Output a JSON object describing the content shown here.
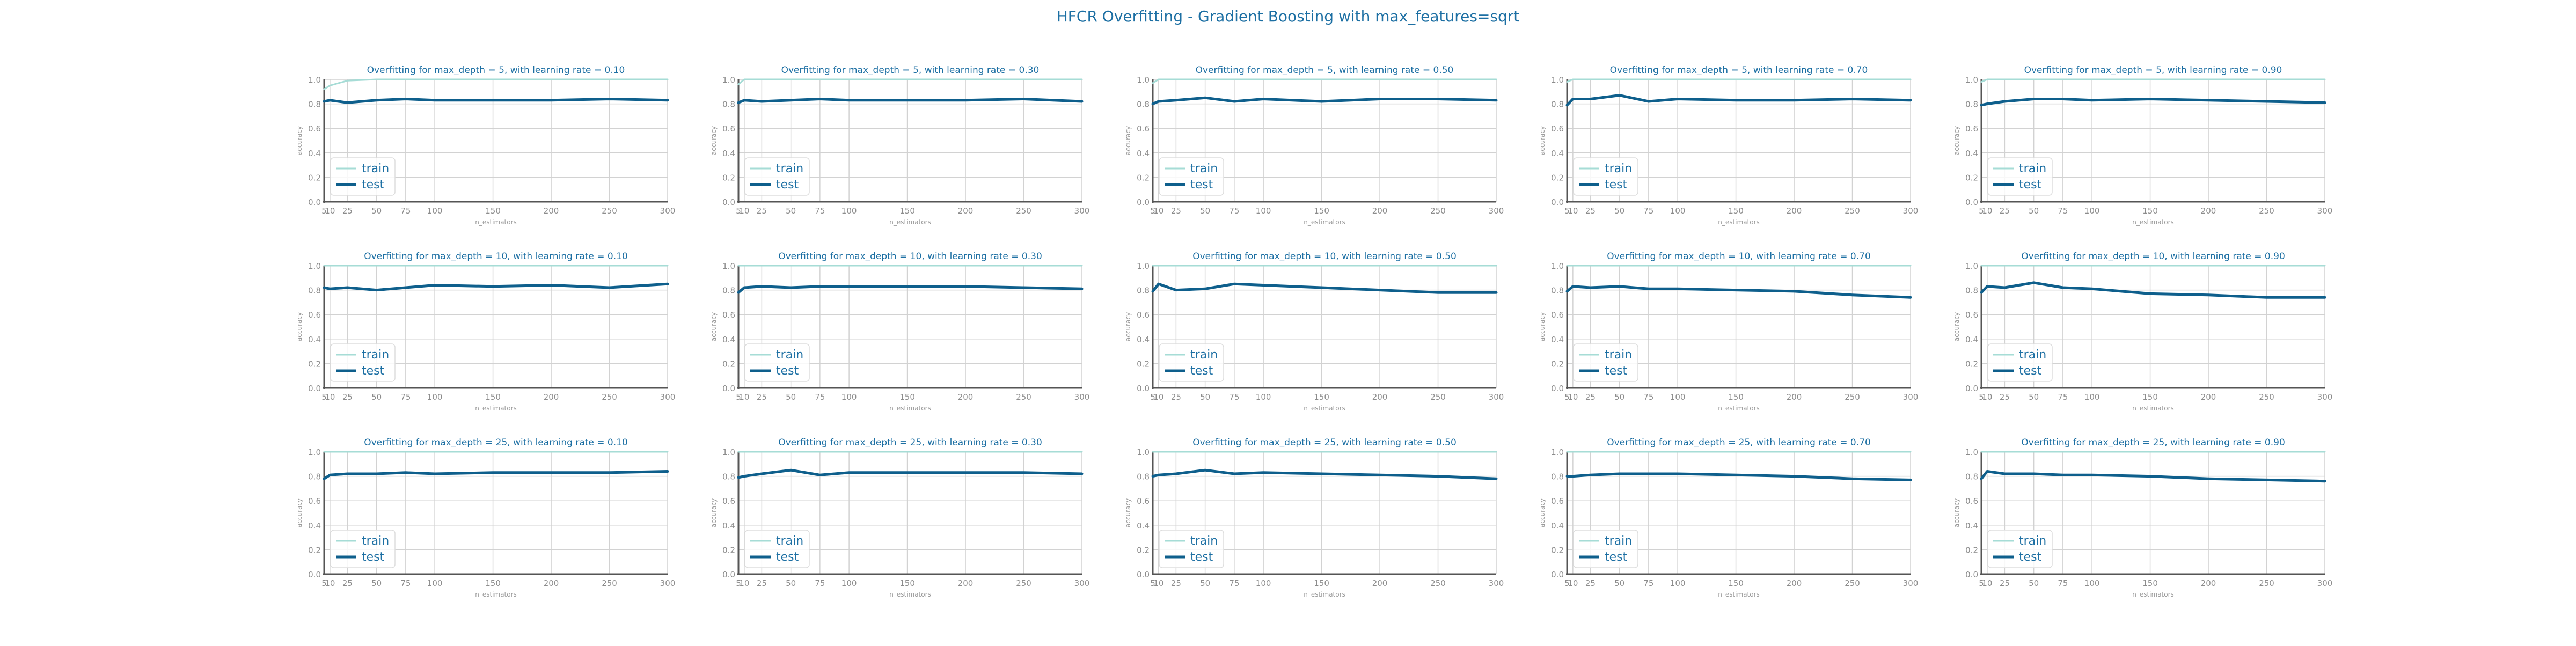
{
  "figure": {
    "title": "HFCR Overfitting - Gradient Boosting with max_features=sqrt"
  },
  "colors": {
    "train": "#a6dcd6",
    "test": "#0e5f8c",
    "title": "#1c6fa3",
    "axis_label": "#9a9a9a",
    "tick": "#8c8c8c",
    "grid": "#d2d2d2",
    "axis": "#555555"
  },
  "chart_data": [
    {
      "type": "line",
      "title": "Overfitting for max_depth = 5, with learning rate = 0.10",
      "xlabel": "n_estimators",
      "ylabel": "accuracy",
      "xlim": [
        5,
        300
      ],
      "ylim": [
        0.0,
        1.0
      ],
      "x": [
        5,
        10,
        25,
        50,
        75,
        100,
        150,
        200,
        250,
        300
      ],
      "xticks": [
        "5",
        "10",
        "25",
        "50",
        "75",
        "100",
        "150",
        "200",
        "250",
        "300"
      ],
      "yticks": [
        "0.0",
        "0.2",
        "0.4",
        "0.6",
        "0.8",
        "1.0"
      ],
      "legend": "lower-left",
      "grid": true,
      "series": [
        {
          "name": "train",
          "values": [
            0.92,
            0.95,
            0.99,
            1.0,
            1.0,
            1.0,
            1.0,
            1.0,
            1.0,
            1.0
          ]
        },
        {
          "name": "test",
          "values": [
            0.82,
            0.83,
            0.81,
            0.83,
            0.84,
            0.83,
            0.83,
            0.83,
            0.84,
            0.83
          ]
        }
      ]
    },
    {
      "type": "line",
      "title": "Overfitting for max_depth = 5, with learning rate = 0.30",
      "xlabel": "n_estimators",
      "ylabel": "accuracy",
      "xlim": [
        5,
        300
      ],
      "ylim": [
        0.0,
        1.0
      ],
      "x": [
        5,
        10,
        25,
        50,
        75,
        100,
        150,
        200,
        250,
        300
      ],
      "xticks": [
        "5",
        "10",
        "25",
        "50",
        "75",
        "100",
        "150",
        "200",
        "250",
        "300"
      ],
      "yticks": [
        "0.0",
        "0.2",
        "0.4",
        "0.6",
        "0.8",
        "1.0"
      ],
      "legend": "lower-left",
      "grid": true,
      "series": [
        {
          "name": "train",
          "values": [
            0.96,
            1.0,
            1.0,
            1.0,
            1.0,
            1.0,
            1.0,
            1.0,
            1.0,
            1.0
          ]
        },
        {
          "name": "test",
          "values": [
            0.81,
            0.83,
            0.82,
            0.83,
            0.84,
            0.83,
            0.83,
            0.83,
            0.84,
            0.82
          ]
        }
      ]
    },
    {
      "type": "line",
      "title": "Overfitting for max_depth = 5, with learning rate = 0.50",
      "xlabel": "n_estimators",
      "ylabel": "accuracy",
      "xlim": [
        5,
        300
      ],
      "ylim": [
        0.0,
        1.0
      ],
      "x": [
        5,
        10,
        25,
        50,
        75,
        100,
        150,
        200,
        250,
        300
      ],
      "xticks": [
        "5",
        "10",
        "25",
        "50",
        "75",
        "100",
        "150",
        "200",
        "250",
        "300"
      ],
      "yticks": [
        "0.0",
        "0.2",
        "0.4",
        "0.6",
        "0.8",
        "1.0"
      ],
      "legend": "lower-left",
      "grid": true,
      "series": [
        {
          "name": "train",
          "values": [
            0.97,
            1.0,
            1.0,
            1.0,
            1.0,
            1.0,
            1.0,
            1.0,
            1.0,
            1.0
          ]
        },
        {
          "name": "test",
          "values": [
            0.8,
            0.82,
            0.83,
            0.85,
            0.82,
            0.84,
            0.82,
            0.84,
            0.84,
            0.83
          ]
        }
      ]
    },
    {
      "type": "line",
      "title": "Overfitting for max_depth = 5, with learning rate = 0.70",
      "xlabel": "n_estimators",
      "ylabel": "accuracy",
      "xlim": [
        5,
        300
      ],
      "ylim": [
        0.0,
        1.0
      ],
      "x": [
        5,
        10,
        25,
        50,
        75,
        100,
        150,
        200,
        250,
        300
      ],
      "xticks": [
        "5",
        "10",
        "25",
        "50",
        "75",
        "100",
        "150",
        "200",
        "250",
        "300"
      ],
      "yticks": [
        "0.0",
        "0.2",
        "0.4",
        "0.6",
        "0.8",
        "1.0"
      ],
      "legend": "lower-left",
      "grid": true,
      "series": [
        {
          "name": "train",
          "values": [
            0.98,
            1.0,
            1.0,
            1.0,
            1.0,
            1.0,
            1.0,
            1.0,
            1.0,
            1.0
          ]
        },
        {
          "name": "test",
          "values": [
            0.79,
            0.84,
            0.84,
            0.87,
            0.82,
            0.84,
            0.83,
            0.83,
            0.84,
            0.83
          ]
        }
      ]
    },
    {
      "type": "line",
      "title": "Overfitting for max_depth = 5, with learning rate = 0.90",
      "xlabel": "n_estimators",
      "ylabel": "accuracy",
      "xlim": [
        5,
        300
      ],
      "ylim": [
        0.0,
        1.0
      ],
      "x": [
        5,
        10,
        25,
        50,
        75,
        100,
        150,
        200,
        250,
        300
      ],
      "xticks": [
        "5",
        "10",
        "25",
        "50",
        "75",
        "100",
        "150",
        "200",
        "250",
        "300"
      ],
      "yticks": [
        "0.0",
        "0.2",
        "0.4",
        "0.6",
        "0.8",
        "1.0"
      ],
      "legend": "lower-left",
      "grid": true,
      "series": [
        {
          "name": "train",
          "values": [
            0.98,
            1.0,
            1.0,
            1.0,
            1.0,
            1.0,
            1.0,
            1.0,
            1.0,
            1.0
          ]
        },
        {
          "name": "test",
          "values": [
            0.79,
            0.8,
            0.82,
            0.84,
            0.84,
            0.83,
            0.84,
            0.83,
            0.82,
            0.81
          ]
        }
      ]
    },
    {
      "type": "line",
      "title": "Overfitting for max_depth = 10, with learning rate = 0.10",
      "xlabel": "n_estimators",
      "ylabel": "accuracy",
      "xlim": [
        5,
        300
      ],
      "ylim": [
        0.0,
        1.0
      ],
      "x": [
        5,
        10,
        25,
        50,
        75,
        100,
        150,
        200,
        250,
        300
      ],
      "xticks": [
        "5",
        "10",
        "25",
        "50",
        "75",
        "100",
        "150",
        "200",
        "250",
        "300"
      ],
      "yticks": [
        "0.0",
        "0.2",
        "0.4",
        "0.6",
        "0.8",
        "1.0"
      ],
      "legend": "lower-left",
      "grid": true,
      "series": [
        {
          "name": "train",
          "values": [
            1.0,
            1.0,
            1.0,
            1.0,
            1.0,
            1.0,
            1.0,
            1.0,
            1.0,
            1.0
          ]
        },
        {
          "name": "test",
          "values": [
            0.82,
            0.81,
            0.82,
            0.8,
            0.82,
            0.84,
            0.83,
            0.84,
            0.82,
            0.85
          ]
        }
      ]
    },
    {
      "type": "line",
      "title": "Overfitting for max_depth = 10, with learning rate = 0.30",
      "xlabel": "n_estimators",
      "ylabel": "accuracy",
      "xlim": [
        5,
        300
      ],
      "ylim": [
        0.0,
        1.0
      ],
      "x": [
        5,
        10,
        25,
        50,
        75,
        100,
        150,
        200,
        250,
        300
      ],
      "xticks": [
        "5",
        "10",
        "25",
        "50",
        "75",
        "100",
        "150",
        "200",
        "250",
        "300"
      ],
      "yticks": [
        "0.0",
        "0.2",
        "0.4",
        "0.6",
        "0.8",
        "1.0"
      ],
      "legend": "lower-left",
      "grid": true,
      "series": [
        {
          "name": "train",
          "values": [
            1.0,
            1.0,
            1.0,
            1.0,
            1.0,
            1.0,
            1.0,
            1.0,
            1.0,
            1.0
          ]
        },
        {
          "name": "test",
          "values": [
            0.78,
            0.82,
            0.83,
            0.82,
            0.83,
            0.83,
            0.83,
            0.83,
            0.82,
            0.81
          ]
        }
      ]
    },
    {
      "type": "line",
      "title": "Overfitting for max_depth = 10, with learning rate = 0.50",
      "xlabel": "n_estimators",
      "ylabel": "accuracy",
      "xlim": [
        5,
        300
      ],
      "ylim": [
        0.0,
        1.0
      ],
      "x": [
        5,
        10,
        25,
        50,
        75,
        100,
        150,
        200,
        250,
        300
      ],
      "xticks": [
        "5",
        "10",
        "25",
        "50",
        "75",
        "100",
        "150",
        "200",
        "250",
        "300"
      ],
      "yticks": [
        "0.0",
        "0.2",
        "0.4",
        "0.6",
        "0.8",
        "1.0"
      ],
      "legend": "lower-left",
      "grid": true,
      "series": [
        {
          "name": "train",
          "values": [
            1.0,
            1.0,
            1.0,
            1.0,
            1.0,
            1.0,
            1.0,
            1.0,
            1.0,
            1.0
          ]
        },
        {
          "name": "test",
          "values": [
            0.79,
            0.85,
            0.8,
            0.81,
            0.85,
            0.84,
            0.82,
            0.8,
            0.78,
            0.78
          ]
        }
      ]
    },
    {
      "type": "line",
      "title": "Overfitting for max_depth = 10, with learning rate = 0.70",
      "xlabel": "n_estimators",
      "ylabel": "accuracy",
      "xlim": [
        5,
        300
      ],
      "ylim": [
        0.0,
        1.0
      ],
      "x": [
        5,
        10,
        25,
        50,
        75,
        100,
        150,
        200,
        250,
        300
      ],
      "xticks": [
        "5",
        "10",
        "25",
        "50",
        "75",
        "100",
        "150",
        "200",
        "250",
        "300"
      ],
      "yticks": [
        "0.0",
        "0.2",
        "0.4",
        "0.6",
        "0.8",
        "1.0"
      ],
      "legend": "lower-left",
      "grid": true,
      "series": [
        {
          "name": "train",
          "values": [
            1.0,
            1.0,
            1.0,
            1.0,
            1.0,
            1.0,
            1.0,
            1.0,
            1.0,
            1.0
          ]
        },
        {
          "name": "test",
          "values": [
            0.79,
            0.83,
            0.82,
            0.83,
            0.81,
            0.81,
            0.8,
            0.79,
            0.76,
            0.74
          ]
        }
      ]
    },
    {
      "type": "line",
      "title": "Overfitting for max_depth = 10, with learning rate = 0.90",
      "xlabel": "n_estimators",
      "ylabel": "accuracy",
      "xlim": [
        5,
        300
      ],
      "ylim": [
        0.0,
        1.0
      ],
      "x": [
        5,
        10,
        25,
        50,
        75,
        100,
        150,
        200,
        250,
        300
      ],
      "xticks": [
        "5",
        "10",
        "25",
        "50",
        "75",
        "100",
        "150",
        "200",
        "250",
        "300"
      ],
      "yticks": [
        "0.0",
        "0.2",
        "0.4",
        "0.6",
        "0.8",
        "1.0"
      ],
      "legend": "lower-left",
      "grid": true,
      "series": [
        {
          "name": "train",
          "values": [
            1.0,
            1.0,
            1.0,
            1.0,
            1.0,
            1.0,
            1.0,
            1.0,
            1.0,
            1.0
          ]
        },
        {
          "name": "test",
          "values": [
            0.78,
            0.83,
            0.82,
            0.86,
            0.82,
            0.81,
            0.77,
            0.76,
            0.74,
            0.74
          ]
        }
      ]
    },
    {
      "type": "line",
      "title": "Overfitting for max_depth = 25, with learning rate = 0.10",
      "xlabel": "n_estimators",
      "ylabel": "accuracy",
      "xlim": [
        5,
        300
      ],
      "ylim": [
        0.0,
        1.0
      ],
      "x": [
        5,
        10,
        25,
        50,
        75,
        100,
        150,
        200,
        250,
        300
      ],
      "xticks": [
        "5",
        "10",
        "25",
        "50",
        "75",
        "100",
        "150",
        "200",
        "250",
        "300"
      ],
      "yticks": [
        "0.0",
        "0.2",
        "0.4",
        "0.6",
        "0.8",
        "1.0"
      ],
      "legend": "lower-left",
      "grid": true,
      "series": [
        {
          "name": "train",
          "values": [
            1.0,
            1.0,
            1.0,
            1.0,
            1.0,
            1.0,
            1.0,
            1.0,
            1.0,
            1.0
          ]
        },
        {
          "name": "test",
          "values": [
            0.78,
            0.81,
            0.82,
            0.82,
            0.83,
            0.82,
            0.83,
            0.83,
            0.83,
            0.84
          ]
        }
      ]
    },
    {
      "type": "line",
      "title": "Overfitting for max_depth = 25, with learning rate = 0.30",
      "xlabel": "n_estimators",
      "ylabel": "accuracy",
      "xlim": [
        5,
        300
      ],
      "ylim": [
        0.0,
        1.0
      ],
      "x": [
        5,
        10,
        25,
        50,
        75,
        100,
        150,
        200,
        250,
        300
      ],
      "xticks": [
        "5",
        "10",
        "25",
        "50",
        "75",
        "100",
        "150",
        "200",
        "250",
        "300"
      ],
      "yticks": [
        "0.0",
        "0.2",
        "0.4",
        "0.6",
        "0.8",
        "1.0"
      ],
      "legend": "lower-left",
      "grid": true,
      "series": [
        {
          "name": "train",
          "values": [
            1.0,
            1.0,
            1.0,
            1.0,
            1.0,
            1.0,
            1.0,
            1.0,
            1.0,
            1.0
          ]
        },
        {
          "name": "test",
          "values": [
            0.79,
            0.8,
            0.82,
            0.85,
            0.81,
            0.83,
            0.83,
            0.83,
            0.83,
            0.82
          ]
        }
      ]
    },
    {
      "type": "line",
      "title": "Overfitting for max_depth = 25, with learning rate = 0.50",
      "xlabel": "n_estimators",
      "ylabel": "accuracy",
      "xlim": [
        5,
        300
      ],
      "ylim": [
        0.0,
        1.0
      ],
      "x": [
        5,
        10,
        25,
        50,
        75,
        100,
        150,
        200,
        250,
        300
      ],
      "xticks": [
        "5",
        "10",
        "25",
        "50",
        "75",
        "100",
        "150",
        "200",
        "250",
        "300"
      ],
      "yticks": [
        "0.0",
        "0.2",
        "0.4",
        "0.6",
        "0.8",
        "1.0"
      ],
      "legend": "lower-left",
      "grid": true,
      "series": [
        {
          "name": "train",
          "values": [
            1.0,
            1.0,
            1.0,
            1.0,
            1.0,
            1.0,
            1.0,
            1.0,
            1.0,
            1.0
          ]
        },
        {
          "name": "test",
          "values": [
            0.8,
            0.81,
            0.82,
            0.85,
            0.82,
            0.83,
            0.82,
            0.81,
            0.8,
            0.78
          ]
        }
      ]
    },
    {
      "type": "line",
      "title": "Overfitting for max_depth = 25, with learning rate = 0.70",
      "xlabel": "n_estimators",
      "ylabel": "accuracy",
      "xlim": [
        5,
        300
      ],
      "ylim": [
        0.0,
        1.0
      ],
      "x": [
        5,
        10,
        25,
        50,
        75,
        100,
        150,
        200,
        250,
        300
      ],
      "xticks": [
        "5",
        "10",
        "25",
        "50",
        "75",
        "100",
        "150",
        "200",
        "250",
        "300"
      ],
      "yticks": [
        "0.0",
        "0.2",
        "0.4",
        "0.6",
        "0.8",
        "1.0"
      ],
      "legend": "lower-left",
      "grid": true,
      "series": [
        {
          "name": "train",
          "values": [
            1.0,
            1.0,
            1.0,
            1.0,
            1.0,
            1.0,
            1.0,
            1.0,
            1.0,
            1.0
          ]
        },
        {
          "name": "test",
          "values": [
            0.8,
            0.8,
            0.81,
            0.82,
            0.82,
            0.82,
            0.81,
            0.8,
            0.78,
            0.77
          ]
        }
      ]
    },
    {
      "type": "line",
      "title": "Overfitting for max_depth = 25, with learning rate = 0.90",
      "xlabel": "n_estimators",
      "ylabel": "accuracy",
      "xlim": [
        5,
        300
      ],
      "ylim": [
        0.0,
        1.0
      ],
      "x": [
        5,
        10,
        25,
        50,
        75,
        100,
        150,
        200,
        250,
        300
      ],
      "xticks": [
        "5",
        "10",
        "25",
        "50",
        "75",
        "100",
        "150",
        "200",
        "250",
        "300"
      ],
      "yticks": [
        "0.0",
        "0.2",
        "0.4",
        "0.6",
        "0.8",
        "1.0"
      ],
      "legend": "lower-left",
      "grid": true,
      "series": [
        {
          "name": "train",
          "values": [
            1.0,
            1.0,
            1.0,
            1.0,
            1.0,
            1.0,
            1.0,
            1.0,
            1.0,
            1.0
          ]
        },
        {
          "name": "test",
          "values": [
            0.78,
            0.84,
            0.82,
            0.82,
            0.81,
            0.81,
            0.8,
            0.78,
            0.77,
            0.76
          ]
        }
      ]
    }
  ]
}
